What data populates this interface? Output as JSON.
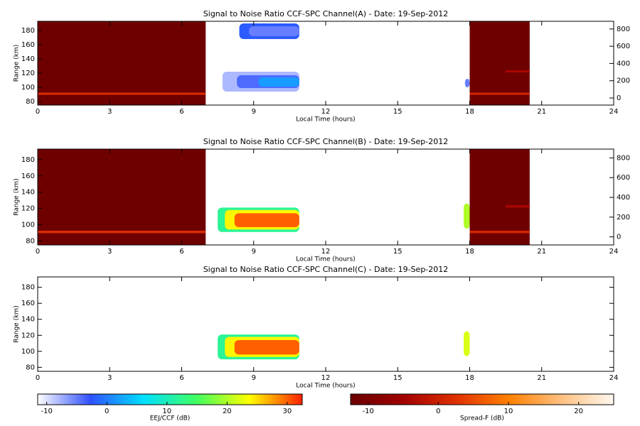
{
  "chart_data": [
    {
      "type": "heatmap",
      "title": "Signal to Noise Ratio CCF-SPC Channel(A) - Date: 19-Sep-2012",
      "x_label": "Local Time (hours)",
      "y_label": "Range (km)",
      "xlim": [
        0,
        24
      ],
      "xticks": [
        0,
        3,
        6,
        9,
        12,
        15,
        18,
        21,
        24
      ],
      "ylim": [
        75,
        193
      ],
      "yticks": [
        80,
        100,
        120,
        140,
        160,
        180
      ],
      "y2lim": [
        -82,
        889
      ],
      "y2ticks": [
        0,
        200,
        400,
        600,
        800
      ],
      "blocks": [
        {
          "x": [
            0,
            7
          ],
          "y": [
            75,
            193
          ],
          "value": -12,
          "scale": 1
        },
        {
          "x": [
            0,
            7
          ],
          "y": [
            89.5,
            92.5
          ],
          "value": 2,
          "scale": 1
        },
        {
          "x": [
            18,
            20.5
          ],
          "y": [
            75,
            193
          ],
          "value": -12,
          "scale": 1
        },
        {
          "x": [
            18,
            20.5
          ],
          "y": [
            89.5,
            92.5
          ],
          "value": 1,
          "scale": 1
        },
        {
          "x": [
            19.5,
            20.5
          ],
          "y": [
            121,
            124
          ],
          "value": -4,
          "scale": 1
        },
        {
          "x": [
            8.4,
            10.9
          ],
          "y": [
            168,
            190
          ],
          "value": -2,
          "scale": 0
        },
        {
          "x": [
            8.8,
            10.9
          ],
          "y": [
            172,
            186
          ],
          "value": -5,
          "scale": 0
        },
        {
          "x": [
            7.7,
            10.9
          ],
          "y": [
            94,
            122
          ],
          "value": -8,
          "scale": 0
        },
        {
          "x": [
            8.3,
            10.9
          ],
          "y": [
            99,
            117
          ],
          "value": -4,
          "scale": 0
        },
        {
          "x": [
            9.2,
            10.9
          ],
          "y": [
            101,
            114
          ],
          "value": 2,
          "scale": 0
        },
        {
          "x": [
            17.8,
            18
          ],
          "y": [
            100,
            112
          ],
          "value": -5,
          "scale": 0
        }
      ]
    },
    {
      "type": "heatmap",
      "title": "Signal to Noise Ratio CCF-SPC Channel(B) - Date: 19-Sep-2012",
      "x_label": "Local Time (hours)",
      "y_label": "Range (km)",
      "xlim": [
        0,
        24
      ],
      "xticks": [
        0,
        3,
        6,
        9,
        12,
        15,
        18,
        21,
        24
      ],
      "ylim": [
        75,
        193
      ],
      "yticks": [
        80,
        100,
        120,
        140,
        160,
        180
      ],
      "y2lim": [
        -82,
        889
      ],
      "y2ticks": [
        0,
        200,
        400,
        600,
        800
      ],
      "blocks": [
        {
          "x": [
            0,
            7
          ],
          "y": [
            75,
            193
          ],
          "value": -12,
          "scale": 1
        },
        {
          "x": [
            0,
            7
          ],
          "y": [
            89.5,
            92.5
          ],
          "value": 2,
          "scale": 1
        },
        {
          "x": [
            18,
            20.5
          ],
          "y": [
            75,
            193
          ],
          "value": -12,
          "scale": 1
        },
        {
          "x": [
            18,
            20.5
          ],
          "y": [
            89.5,
            92.5
          ],
          "value": 1,
          "scale": 1
        },
        {
          "x": [
            19.5,
            20.5
          ],
          "y": [
            121,
            124
          ],
          "value": -4,
          "scale": 1
        },
        {
          "x": [
            7.5,
            10.9
          ],
          "y": [
            91,
            121
          ],
          "value": 12,
          "scale": 0
        },
        {
          "x": [
            7.8,
            10.9
          ],
          "y": [
            94,
            118
          ],
          "value": 24,
          "scale": 0
        },
        {
          "x": [
            8.2,
            10.9
          ],
          "y": [
            97,
            114
          ],
          "value": 30,
          "scale": 0
        },
        {
          "x": [
            17.75,
            18
          ],
          "y": [
            95,
            126
          ],
          "value": 20,
          "scale": 0
        }
      ]
    },
    {
      "type": "heatmap",
      "title": "Signal to Noise Ratio CCF-SPC Channel(C) - Date: 19-Sep-2012",
      "x_label": "Local Time (hours)",
      "y_label": "Range (km)",
      "xlim": [
        0,
        24
      ],
      "xticks": [
        0,
        3,
        6,
        9,
        12,
        15,
        18,
        21,
        24
      ],
      "ylim": [
        75,
        193
      ],
      "yticks": [
        80,
        100,
        120,
        140,
        160,
        180
      ],
      "blocks": [
        {
          "x": [
            7.5,
            10.9
          ],
          "y": [
            90,
            121
          ],
          "value": 12,
          "scale": 0
        },
        {
          "x": [
            7.8,
            10.9
          ],
          "y": [
            93,
            118
          ],
          "value": 24,
          "scale": 0
        },
        {
          "x": [
            8.2,
            10.9
          ],
          "y": [
            96,
            114
          ],
          "value": 30,
          "scale": 0
        },
        {
          "x": [
            17.75,
            18
          ],
          "y": [
            94,
            125
          ],
          "value": 22,
          "scale": 0
        }
      ]
    }
  ],
  "colorbars": [
    {
      "label": "EEJ/CCF (dB)",
      "lim": [
        -11.5,
        32.5
      ],
      "ticks": [
        -10,
        0,
        10,
        20,
        30
      ],
      "colors": [
        "#ffffff",
        "#3050ff",
        "#00e0ff",
        "#40ff60",
        "#ffff00",
        "#ff2000"
      ]
    },
    {
      "label": "Spread-F (dB)",
      "lim": [
        -12.5,
        25
      ],
      "ticks": [
        -10,
        0,
        10,
        20
      ],
      "colors": [
        "#6b0000",
        "#a00000",
        "#e03000",
        "#ff8000",
        "#ffc080",
        "#fff8f0"
      ]
    }
  ]
}
